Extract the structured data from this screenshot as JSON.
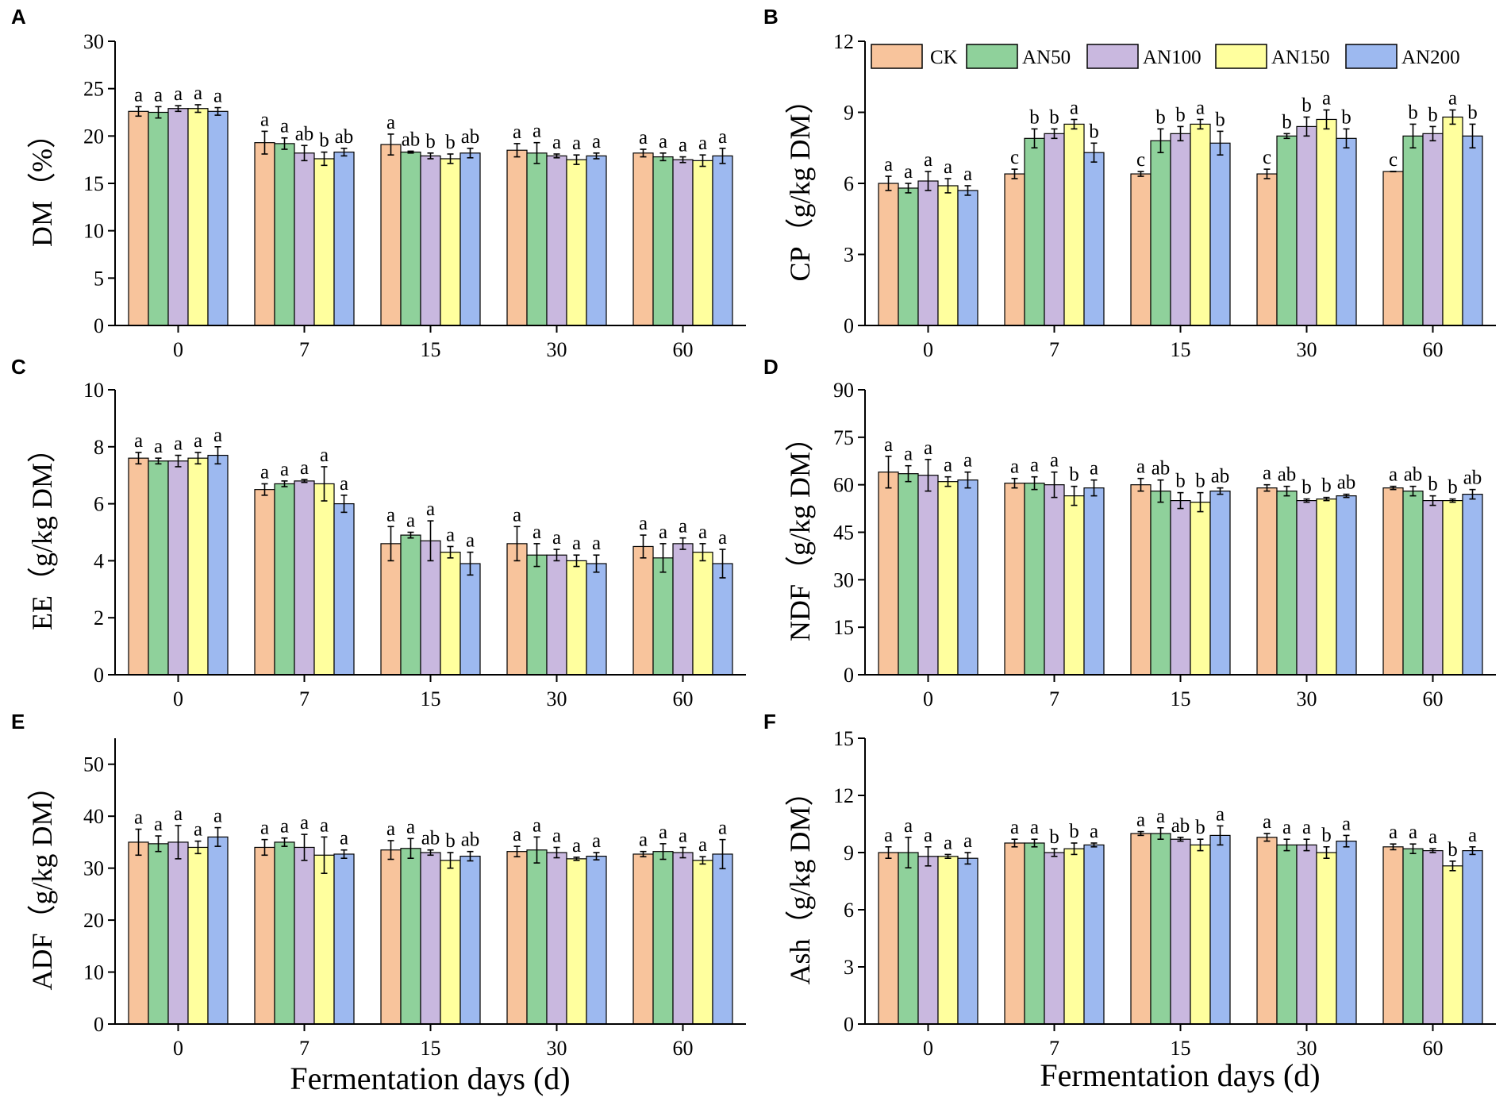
{
  "figure": {
    "xlabel": "Fermentation days (d)",
    "colors": {
      "CK": "#F8C49C",
      "AN50": "#8FD19B",
      "AN100": "#C9B8DF",
      "AN150": "#FFFF9E",
      "AN200": "#9DB9F0"
    }
  },
  "legend": [
    "CK",
    "AN50",
    "AN100",
    "AN150",
    "AN200"
  ],
  "chart_data": [
    {
      "panel": "A",
      "type": "bar",
      "ylabel": "DM（%）",
      "ylim": [
        0,
        30
      ],
      "yticks": [
        0,
        5,
        10,
        15,
        20,
        25,
        30
      ],
      "categories": [
        "0",
        "7",
        "15",
        "30",
        "60"
      ],
      "series": [
        {
          "name": "CK",
          "values": [
            22.6,
            19.3,
            19.1,
            18.5,
            18.2
          ],
          "errors": [
            0.5,
            1.2,
            1.1,
            0.7,
            0.4
          ],
          "letters": [
            "a",
            "a",
            "a",
            "a",
            "a"
          ]
        },
        {
          "name": "AN50",
          "values": [
            22.5,
            19.2,
            18.3,
            18.2,
            17.8
          ],
          "errors": [
            0.6,
            0.6,
            0.1,
            1.1,
            0.4
          ],
          "letters": [
            "a",
            "a",
            "ab",
            "a",
            "a"
          ]
        },
        {
          "name": "AN100",
          "values": [
            22.9,
            18.2,
            17.9,
            17.9,
            17.5
          ],
          "errors": [
            0.3,
            0.8,
            0.3,
            0.2,
            0.3
          ],
          "letters": [
            "a",
            "ab",
            "b",
            "a",
            "a"
          ]
        },
        {
          "name": "AN150",
          "values": [
            22.9,
            17.6,
            17.6,
            17.5,
            17.4
          ],
          "errors": [
            0.4,
            0.7,
            0.5,
            0.5,
            0.6
          ],
          "letters": [
            "a",
            "b",
            "b",
            "a",
            "a"
          ]
        },
        {
          "name": "AN200",
          "values": [
            22.6,
            18.3,
            18.2,
            17.9,
            17.9
          ],
          "errors": [
            0.4,
            0.4,
            0.5,
            0.3,
            0.8
          ],
          "letters": [
            "a",
            "ab",
            "ab",
            "a",
            "a"
          ]
        }
      ]
    },
    {
      "panel": "B",
      "type": "bar",
      "ylabel": "CP（g/kg DM）",
      "ylim": [
        0,
        12
      ],
      "yticks": [
        0,
        3,
        6,
        9,
        12
      ],
      "categories": [
        "0",
        "7",
        "15",
        "30",
        "60"
      ],
      "series": [
        {
          "name": "CK",
          "values": [
            6.0,
            6.4,
            6.4,
            6.4,
            6.5
          ],
          "errors": [
            0.3,
            0.2,
            0.1,
            0.2,
            0.0
          ],
          "letters": [
            "a",
            "c",
            "c",
            "c",
            "c"
          ]
        },
        {
          "name": "AN50",
          "values": [
            5.8,
            7.9,
            7.8,
            8.0,
            8.0
          ],
          "errors": [
            0.2,
            0.4,
            0.5,
            0.1,
            0.5
          ],
          "letters": [
            "a",
            "b",
            "b",
            "b",
            "b"
          ]
        },
        {
          "name": "AN100",
          "values": [
            6.1,
            8.1,
            8.1,
            8.4,
            8.1
          ],
          "errors": [
            0.4,
            0.2,
            0.3,
            0.4,
            0.3
          ],
          "letters": [
            "a",
            "b",
            "b",
            "b",
            "b"
          ]
        },
        {
          "name": "AN150",
          "values": [
            5.9,
            8.5,
            8.5,
            8.7,
            8.8
          ],
          "errors": [
            0.3,
            0.2,
            0.2,
            0.4,
            0.3
          ],
          "letters": [
            "a",
            "a",
            "a",
            "a",
            "a"
          ]
        },
        {
          "name": "AN200",
          "values": [
            5.7,
            7.3,
            7.7,
            7.9,
            8.0
          ],
          "errors": [
            0.2,
            0.4,
            0.5,
            0.4,
            0.5
          ],
          "letters": [
            "a",
            "b",
            "b",
            "b",
            "b"
          ]
        }
      ]
    },
    {
      "panel": "C",
      "type": "bar",
      "ylabel": "EE（g/kg DM）",
      "ylim": [
        0,
        10
      ],
      "yticks": [
        0,
        2,
        4,
        6,
        8,
        10
      ],
      "categories": [
        "0",
        "7",
        "15",
        "30",
        "60"
      ],
      "series": [
        {
          "name": "CK",
          "values": [
            7.6,
            6.5,
            4.6,
            4.6,
            4.5
          ],
          "errors": [
            0.2,
            0.2,
            0.6,
            0.6,
            0.4
          ],
          "letters": [
            "a",
            "a",
            "a",
            "a",
            "a"
          ]
        },
        {
          "name": "AN50",
          "values": [
            7.5,
            6.7,
            4.9,
            4.2,
            4.1
          ],
          "errors": [
            0.1,
            0.1,
            0.1,
            0.4,
            0.5
          ],
          "letters": [
            "a",
            "a",
            "a",
            "a",
            "a"
          ]
        },
        {
          "name": "AN100",
          "values": [
            7.5,
            6.8,
            4.7,
            4.2,
            4.6
          ],
          "errors": [
            0.2,
            0.05,
            0.7,
            0.2,
            0.2
          ],
          "letters": [
            "a",
            "a",
            "a",
            "a",
            "a"
          ]
        },
        {
          "name": "AN150",
          "values": [
            7.6,
            6.7,
            4.3,
            4.0,
            4.3
          ],
          "errors": [
            0.2,
            0.6,
            0.2,
            0.2,
            0.3
          ],
          "letters": [
            "a",
            "a",
            "a",
            "a",
            "a"
          ]
        },
        {
          "name": "AN200",
          "values": [
            7.7,
            6.0,
            3.9,
            3.9,
            3.9
          ],
          "errors": [
            0.3,
            0.3,
            0.4,
            0.3,
            0.5
          ],
          "letters": [
            "a",
            "a",
            "a",
            "a",
            "a"
          ]
        }
      ]
    },
    {
      "panel": "D",
      "type": "bar",
      "ylabel": "NDF（g/kg DM）",
      "ylim": [
        0,
        90
      ],
      "yticks": [
        0,
        15,
        30,
        45,
        60,
        75,
        90
      ],
      "categories": [
        "0",
        "7",
        "15",
        "30",
        "60"
      ],
      "series": [
        {
          "name": "CK",
          "values": [
            64.0,
            60.5,
            60.0,
            59.0,
            59.0
          ],
          "errors": [
            5.0,
            1.5,
            2.0,
            1.0,
            0.5
          ],
          "letters": [
            "a",
            "a",
            "a",
            "a",
            "a"
          ]
        },
        {
          "name": "AN50",
          "values": [
            63.5,
            60.5,
            58.0,
            58.0,
            58.0
          ],
          "errors": [
            2.5,
            2.0,
            3.5,
            1.5,
            1.5
          ],
          "letters": [
            "a",
            "a",
            "ab",
            "ab",
            "ab"
          ]
        },
        {
          "name": "AN100",
          "values": [
            63.0,
            60.0,
            55.0,
            55.0,
            55.0
          ],
          "errors": [
            5.0,
            4.0,
            2.5,
            0.5,
            1.5
          ],
          "letters": [
            "a",
            "a",
            "b",
            "b",
            "b"
          ]
        },
        {
          "name": "AN150",
          "values": [
            61.0,
            56.5,
            54.5,
            55.5,
            55.0
          ],
          "errors": [
            1.5,
            3.0,
            3.0,
            0.5,
            0.5
          ],
          "letters": [
            "a",
            "b",
            "b",
            "b",
            "b"
          ]
        },
        {
          "name": "AN200",
          "values": [
            61.5,
            59.0,
            58.0,
            56.5,
            57.0
          ],
          "errors": [
            2.5,
            2.5,
            1.0,
            0.5,
            1.5
          ],
          "letters": [
            "a",
            "a",
            "ab",
            "ab",
            "ab"
          ]
        }
      ]
    },
    {
      "panel": "E",
      "type": "bar",
      "ylabel": "ADF（g/kg DM）",
      "ylim": [
        0,
        55
      ],
      "yticks": [
        0,
        10,
        20,
        30,
        40,
        50
      ],
      "categories": [
        "0",
        "7",
        "15",
        "30",
        "60"
      ],
      "series": [
        {
          "name": "CK",
          "values": [
            35.0,
            34.0,
            33.5,
            33.2,
            32.7
          ],
          "errors": [
            2.5,
            1.5,
            1.8,
            1.0,
            0.5
          ],
          "letters": [
            "a",
            "a",
            "a",
            "a",
            "a"
          ]
        },
        {
          "name": "AN50",
          "values": [
            34.7,
            35.0,
            33.8,
            33.5,
            33.2
          ],
          "errors": [
            1.5,
            0.8,
            1.9,
            2.5,
            1.5
          ],
          "letters": [
            "a",
            "a",
            "a",
            "a",
            "a"
          ]
        },
        {
          "name": "AN100",
          "values": [
            35.0,
            34.0,
            33.0,
            33.0,
            33.0
          ],
          "errors": [
            3.2,
            2.5,
            0.5,
            1.0,
            1.0
          ],
          "letters": [
            "a",
            "a",
            "ab",
            "a",
            "a"
          ]
        },
        {
          "name": "AN150",
          "values": [
            34.0,
            32.5,
            31.5,
            31.8,
            31.5
          ],
          "errors": [
            1.2,
            3.5,
            1.5,
            0.3,
            0.7
          ],
          "letters": [
            "a",
            "a",
            "b",
            "a",
            "a"
          ]
        },
        {
          "name": "AN200",
          "values": [
            36.0,
            32.7,
            32.3,
            32.3,
            32.7
          ],
          "errors": [
            1.8,
            0.8,
            0.9,
            0.7,
            2.8
          ],
          "letters": [
            "a",
            "a",
            "ab",
            "a",
            "a"
          ]
        }
      ]
    },
    {
      "panel": "F",
      "type": "bar",
      "ylabel": "Ash（g/kg DM）",
      "ylim": [
        0,
        15
      ],
      "yticks": [
        0,
        3,
        6,
        9,
        12,
        15
      ],
      "categories": [
        "0",
        "7",
        "15",
        "30",
        "60"
      ],
      "series": [
        {
          "name": "CK",
          "values": [
            9.0,
            9.5,
            10.0,
            9.8,
            9.3
          ],
          "errors": [
            0.3,
            0.2,
            0.1,
            0.2,
            0.15
          ],
          "letters": [
            "a",
            "a",
            "a",
            "a",
            "a"
          ]
        },
        {
          "name": "AN50",
          "values": [
            9.0,
            9.5,
            10.0,
            9.4,
            9.2
          ],
          "errors": [
            0.8,
            0.2,
            0.3,
            0.3,
            0.25
          ],
          "letters": [
            "a",
            "a",
            "a",
            "a",
            "a"
          ]
        },
        {
          "name": "AN100",
          "values": [
            8.8,
            9.0,
            9.7,
            9.4,
            9.1
          ],
          "errors": [
            0.5,
            0.2,
            0.1,
            0.3,
            0.1
          ],
          "letters": [
            "a",
            "b",
            "ab",
            "a",
            "a"
          ]
        },
        {
          "name": "AN150",
          "values": [
            8.8,
            9.2,
            9.4,
            9.0,
            8.3
          ],
          "errors": [
            0.1,
            0.3,
            0.3,
            0.3,
            0.25
          ],
          "letters": [
            "a",
            "b",
            "b",
            "b",
            "b"
          ]
        },
        {
          "name": "AN200",
          "values": [
            8.7,
            9.4,
            9.9,
            9.6,
            9.1
          ],
          "errors": [
            0.3,
            0.1,
            0.5,
            0.3,
            0.2
          ],
          "letters": [
            "a",
            "a",
            "a",
            "a",
            "a"
          ]
        }
      ]
    }
  ]
}
